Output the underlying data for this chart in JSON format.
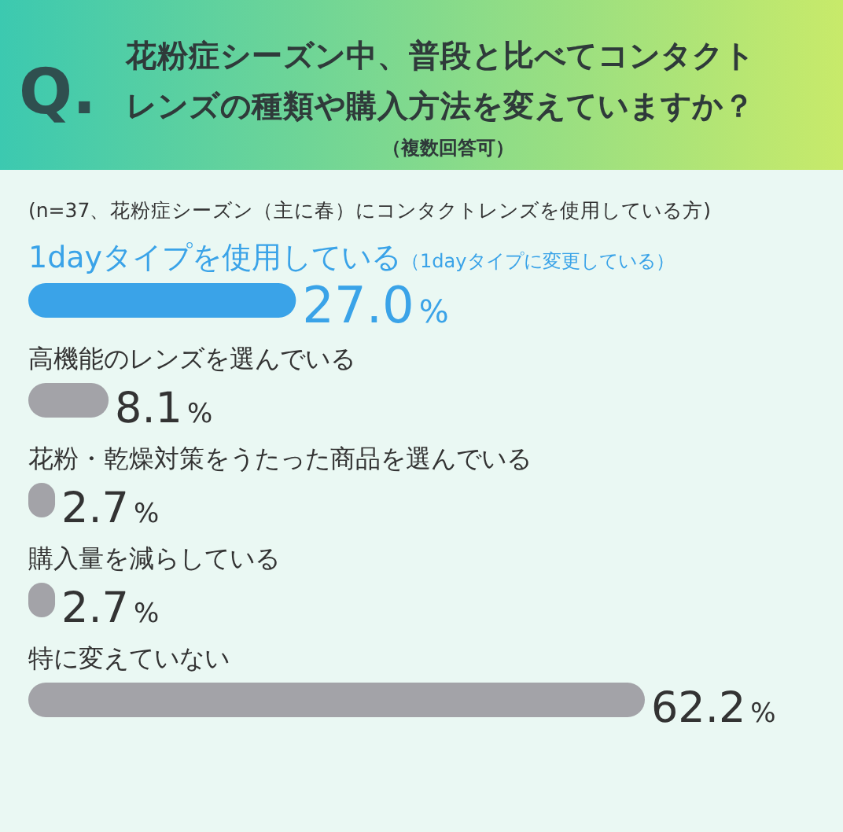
{
  "chart_data": {
    "type": "bar",
    "orientation": "horizontal",
    "title": "Q.花粉症シーズン中、普段と比べてコンタクトレンズの種類や購入方法を変えていますか？",
    "subtitle": "（複数回答可）",
    "annotations": [
      "(n=37、花粉症シーズン（主に春）にコンタクトレンズを使用している方)"
    ],
    "categories": [
      "1dayタイプを使用している（1dayタイプに変更している）",
      "高機能のレンズを選んでいる",
      "花粉・乾燥対策をうたった商品を選んでいる",
      "購入量を減らしている",
      "特に変えていない"
    ],
    "values": [
      27.0,
      8.1,
      2.7,
      2.7,
      62.2
    ],
    "value_labels": [
      "27.0%",
      "8.1%",
      "2.7%",
      "2.7%",
      "62.2%"
    ],
    "colors": [
      "#3aa3e8",
      "#a3a3a8",
      "#a3a3a8",
      "#a3a3a8",
      "#a3a3a8"
    ]
  }
}
